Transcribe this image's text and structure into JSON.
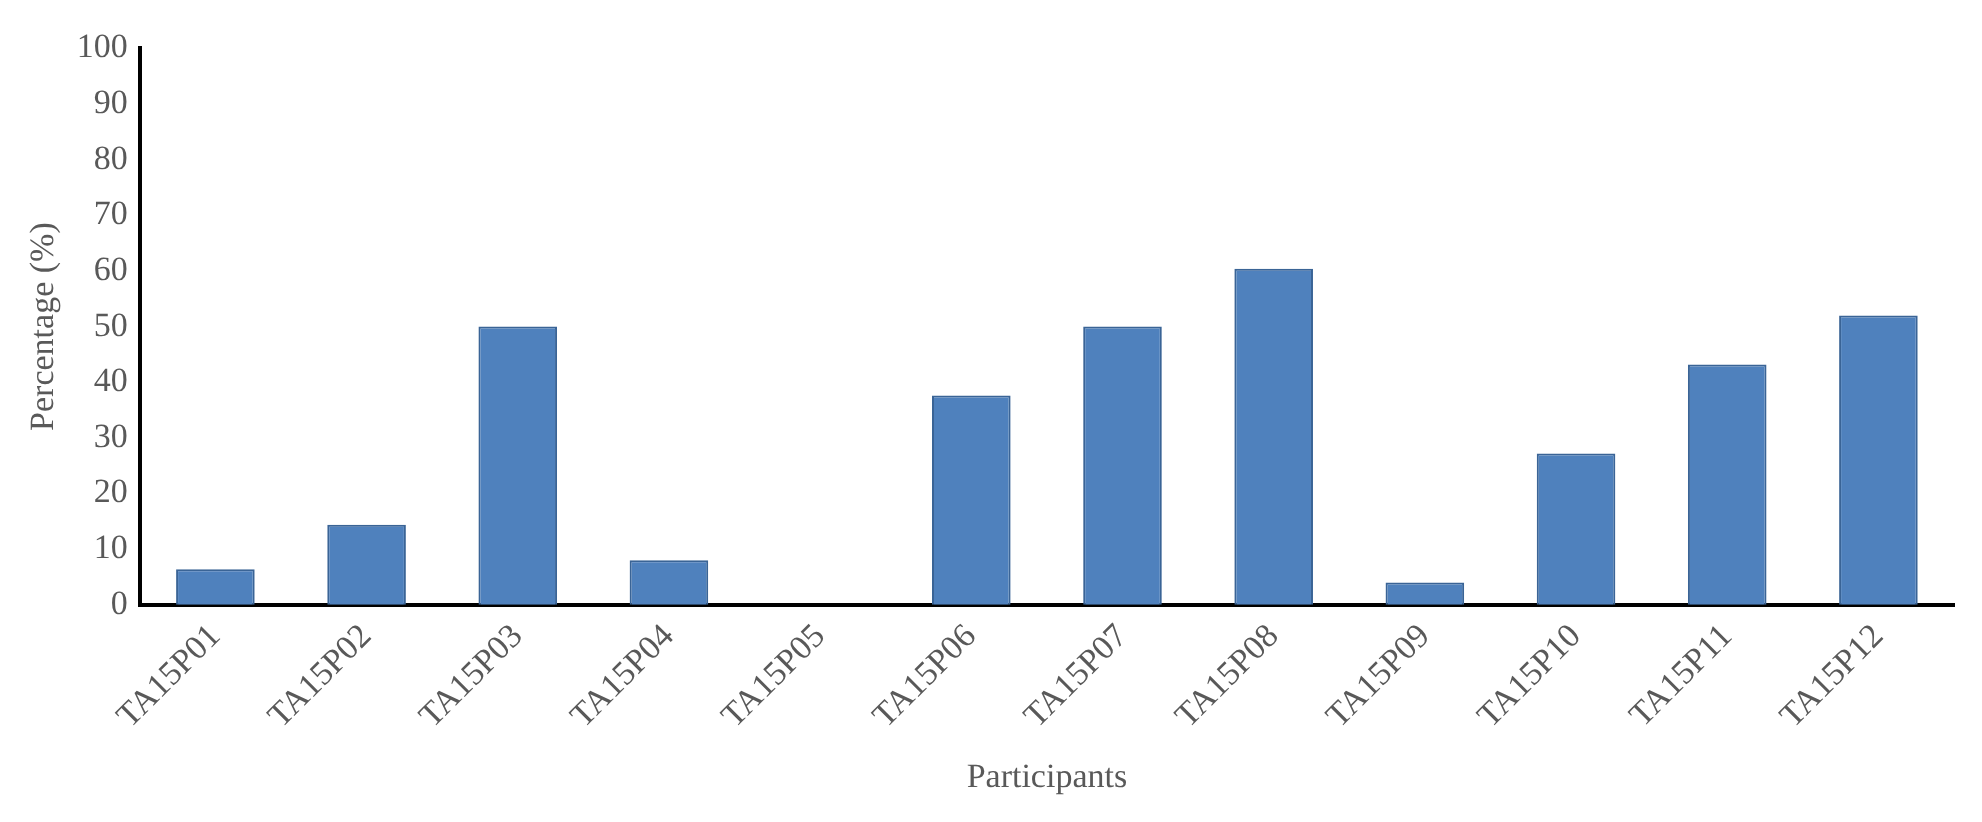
{
  "chart_data": {
    "type": "bar",
    "xlabel": "Participants",
    "ylabel": "Percentage (%)",
    "categories": [
      "TA15P01",
      "TA15P02",
      "TA15P03",
      "TA15P04",
      "TA15P05",
      "TA15P06",
      "TA15P07",
      "TA15P08",
      "TA15P09",
      "TA15P10",
      "TA15P11",
      "TA15P12"
    ],
    "values": [
      6.4,
      14.4,
      50,
      8,
      0,
      37.6,
      50,
      60.4,
      4,
      27.2,
      43.2,
      52
    ],
    "color": "#4f81bd",
    "ylim": [
      0,
      100
    ],
    "yticks": [
      0,
      10,
      20,
      30,
      40,
      50,
      60,
      70,
      80,
      90,
      100
    ],
    "grid": false,
    "legend": false
  }
}
